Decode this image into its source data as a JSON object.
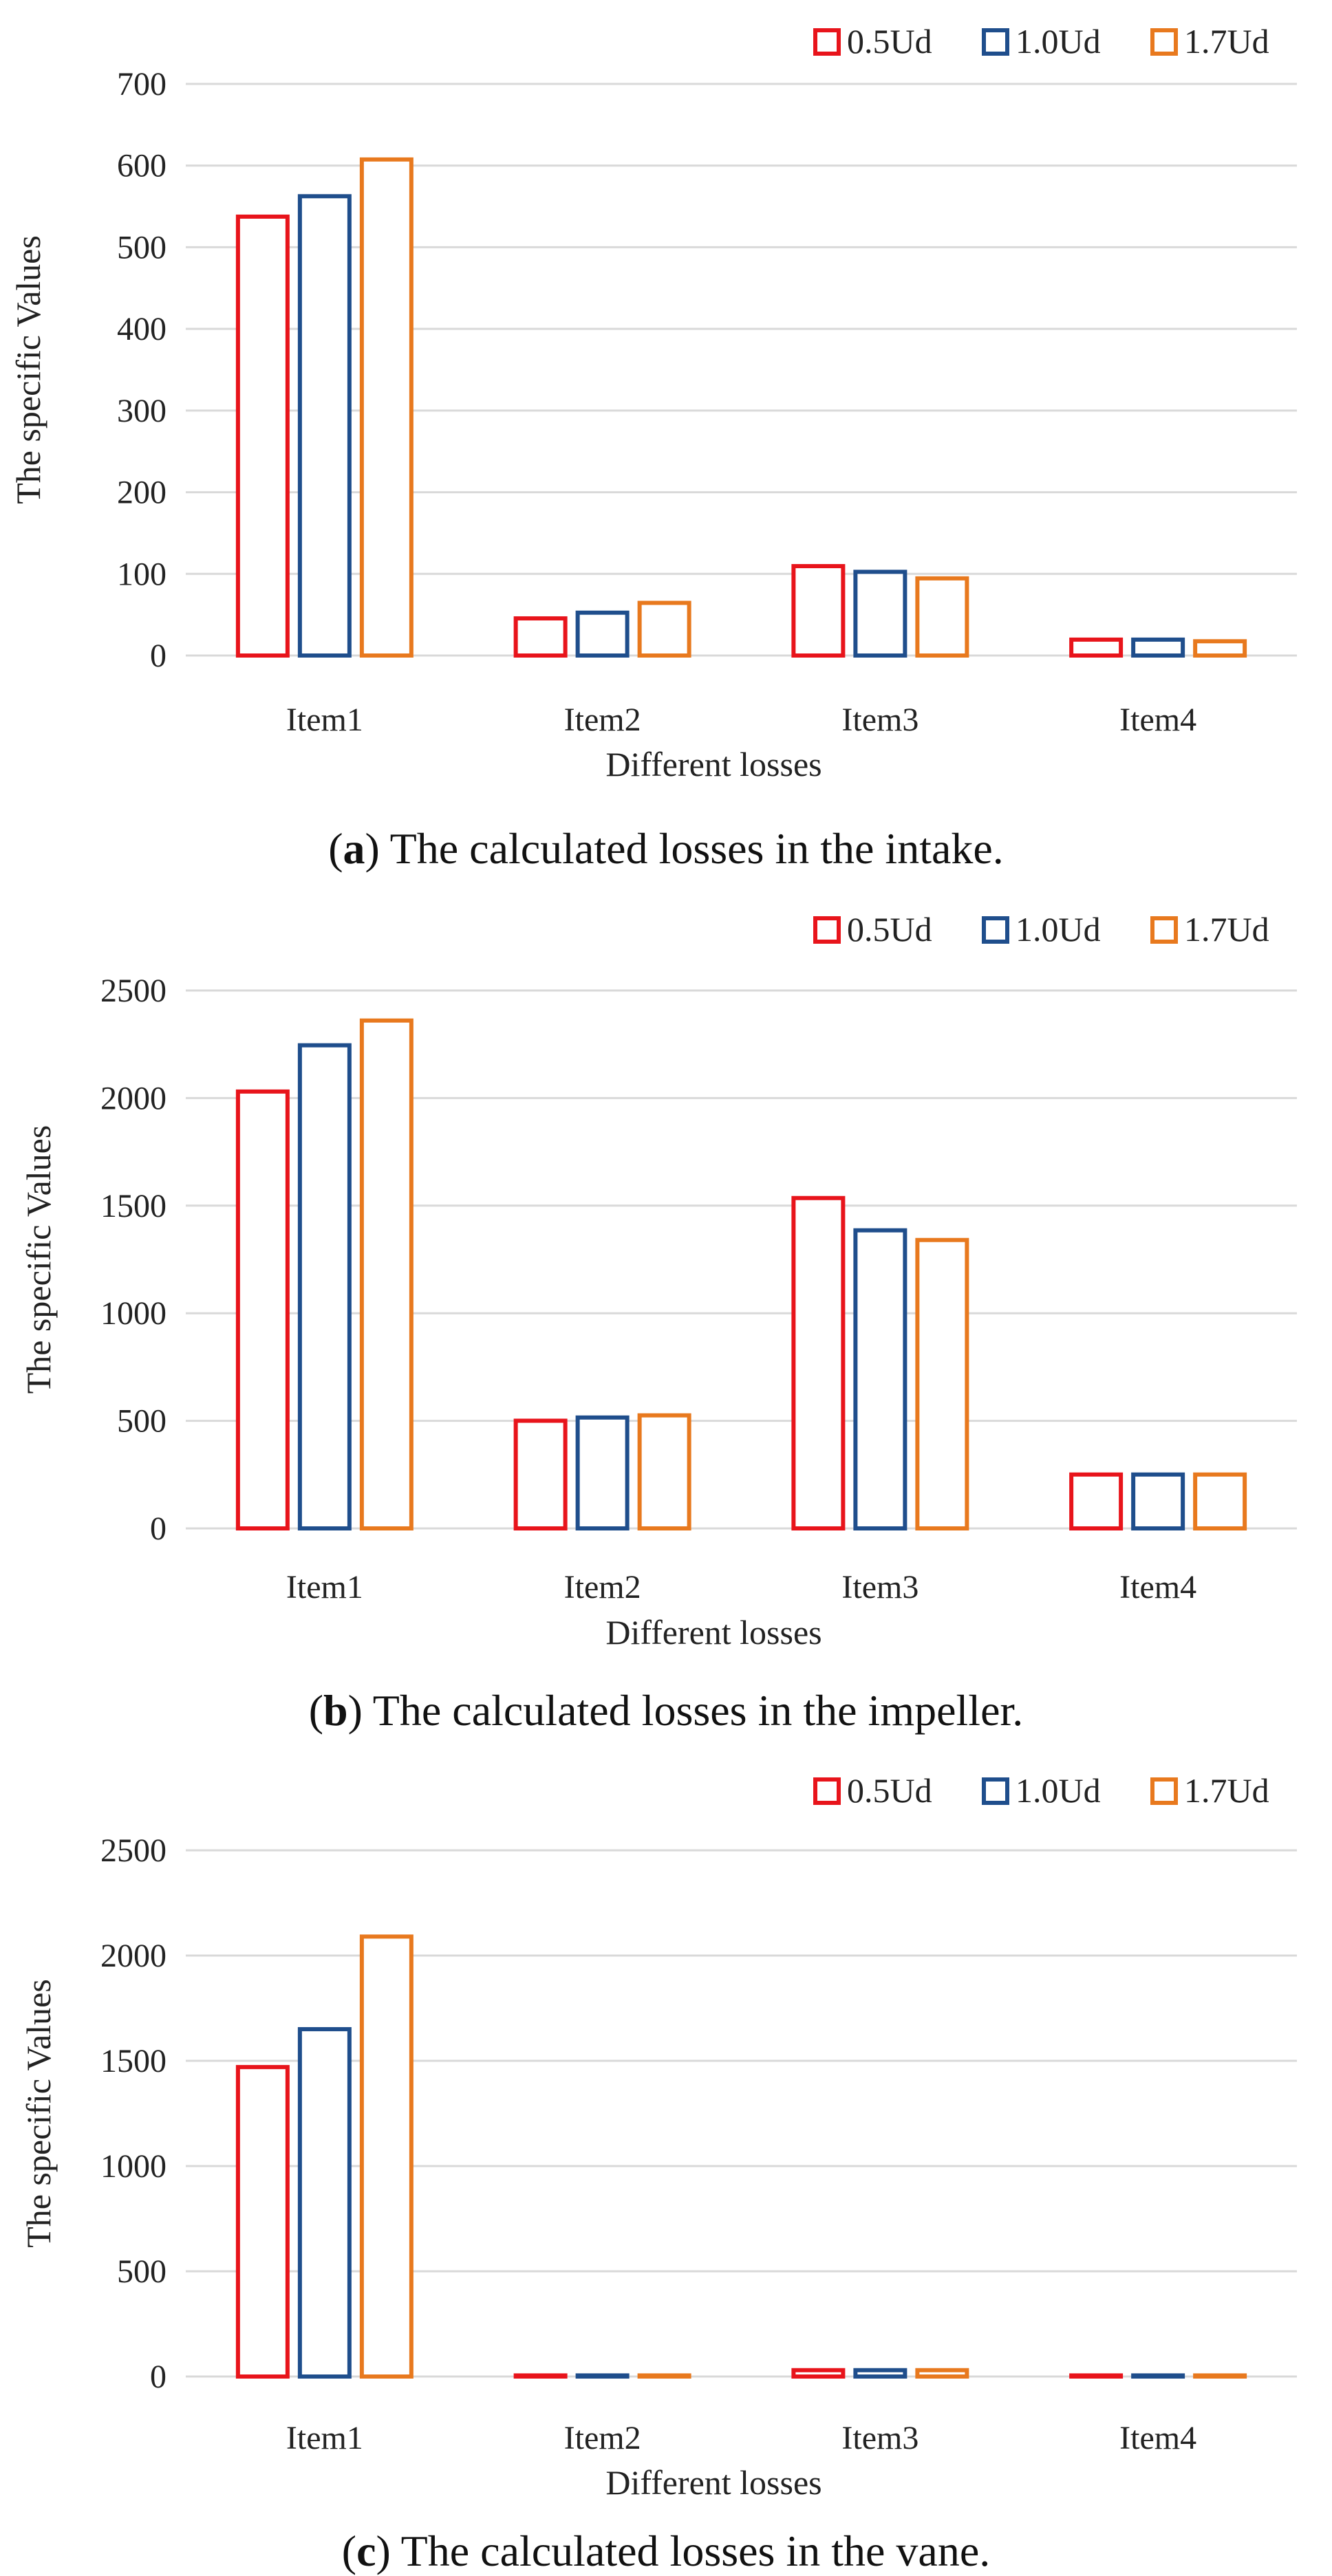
{
  "series_colors": [
    "#e8141b",
    "#1f4e8c",
    "#e8791e"
  ],
  "chart_data": [
    {
      "type": "bar",
      "title": "The calculated losses in the intake.",
      "caption_label": "a",
      "caption_text": "The calculated losses in the intake.",
      "xlabel": "Different losses",
      "ylabel": "The specific Values",
      "ylim": [
        0,
        700
      ],
      "yticks": [
        "0",
        "100",
        "200",
        "300",
        "400",
        "500",
        "600",
        "700"
      ],
      "categories": [
        "Item1",
        "Item2",
        "Item3",
        "Item4"
      ],
      "legend": {
        "position": "top-right",
        "entries": [
          "0.5Ud",
          "1.0Ud",
          "1.7Ud"
        ]
      },
      "series": [
        {
          "name": "0.5Ud",
          "values": [
            540,
            48,
            112,
            22
          ]
        },
        {
          "name": "1.0Ud",
          "values": [
            565,
            55,
            105,
            22
          ]
        },
        {
          "name": "1.7Ud",
          "values": [
            610,
            67,
            97,
            20
          ]
        }
      ]
    },
    {
      "type": "bar",
      "title": "The calculated losses in the impeller.",
      "caption_label": "b",
      "caption_text": "The calculated losses in the impeller.",
      "xlabel": "Different losses",
      "ylabel": "The specific Values",
      "ylim": [
        0,
        2500
      ],
      "yticks": [
        "0",
        "500",
        "1000",
        "1500",
        "2000",
        "2500"
      ],
      "categories": [
        "Item1",
        "Item2",
        "Item3",
        "Item4"
      ],
      "legend": {
        "position": "top-right",
        "entries": [
          "0.5Ud",
          "1.0Ud",
          "1.7Ud"
        ]
      },
      "series": [
        {
          "name": "0.5Ud",
          "values": [
            2040,
            510,
            1545,
            260
          ]
        },
        {
          "name": "1.0Ud",
          "values": [
            2255,
            525,
            1395,
            260
          ]
        },
        {
          "name": "1.7Ud",
          "values": [
            2370,
            535,
            1350,
            260
          ]
        }
      ]
    },
    {
      "type": "bar",
      "title": "The calculated losses in the vane.",
      "caption_label": "c",
      "caption_text": "The calculated losses in the vane.",
      "xlabel": "Different losses",
      "ylabel": "The specific Values",
      "ylim": [
        0,
        2500
      ],
      "yticks": [
        "0",
        "500",
        "1000",
        "1500",
        "2000",
        "2500"
      ],
      "categories": [
        "Item1",
        "Item2",
        "Item3",
        "Item4"
      ],
      "legend": {
        "position": "top-right",
        "entries": [
          "0.5Ud",
          "1.0Ud",
          "1.7Ud"
        ]
      },
      "series": [
        {
          "name": "0.5Ud",
          "values": [
            1480,
            15,
            40,
            15
          ]
        },
        {
          "name": "1.0Ud",
          "values": [
            1660,
            15,
            40,
            15
          ]
        },
        {
          "name": "1.7Ud",
          "values": [
            2100,
            15,
            40,
            15
          ]
        }
      ]
    }
  ]
}
